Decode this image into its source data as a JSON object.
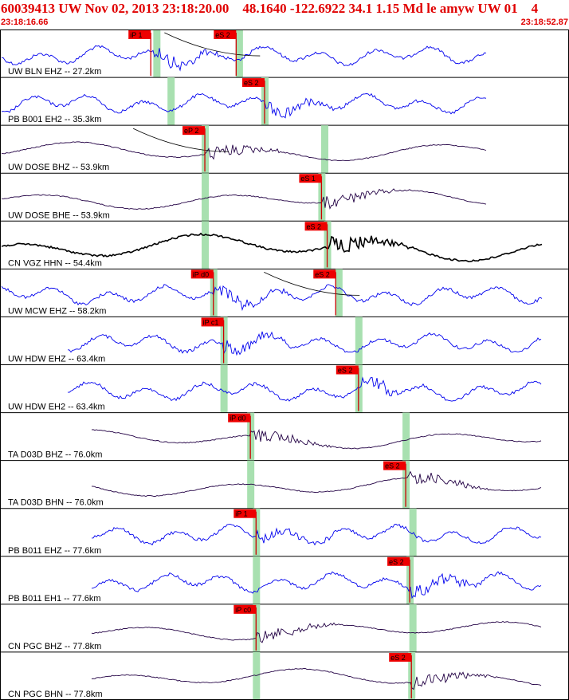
{
  "header": {
    "title": "60039413 UW Nov 02, 2013 23:18:20.00    48.1640 -122.6922 34.1 1.15 Md le amyw UW 01    4",
    "time_start": "23:18:16.66",
    "time_end": "23:18:52.87",
    "text_color": "#e00000"
  },
  "colors": {
    "blue_trace": "#0000ee",
    "dark_trace": "#220044",
    "black_trace": "#000000",
    "pick_bg": "#ee0000",
    "pick_line": "#cc0000",
    "window": "#a8e0b0"
  },
  "traces": [
    {
      "label": "UW BLN EHZ -- 27.2km",
      "color": "blue",
      "picks": [
        {
          "t": "iP 1",
          "pos": 0.265
        },
        {
          "t": "eS 2",
          "pos": 0.415
        }
      ],
      "windows": [
        0.275,
        0.42
      ],
      "curve": true
    },
    {
      "label": "PB B001 EH2 -- 35.3km",
      "color": "blue",
      "picks": [
        {
          "t": "eS 2",
          "pos": 0.465
        }
      ],
      "windows": [
        0.3,
        0.465
      ],
      "curve": false
    },
    {
      "label": "UW DOSE BHZ -- 53.9km",
      "color": "dark",
      "picks": [
        {
          "t": "eP 2",
          "pos": 0.36
        }
      ],
      "windows": [
        0.36,
        0.57
      ],
      "curve": true
    },
    {
      "label": "UW DOSE BHE -- 53.9km",
      "color": "dark",
      "picks": [
        {
          "t": "eS 1",
          "pos": 0.565
        }
      ],
      "windows": [
        0.36,
        0.565
      ],
      "curve": false
    },
    {
      "label": "CN VGZ HHN -- 54.4km",
      "color": "black",
      "picks": [
        {
          "t": "eS 2",
          "pos": 0.575
        }
      ],
      "windows": [
        0.36,
        0.575
      ],
      "curve": false
    },
    {
      "label": "UW MCW EHZ -- 58.2km",
      "color": "blue",
      "picks": [
        {
          "t": "iP d0",
          "pos": 0.375
        },
        {
          "t": "eS 2",
          "pos": 0.59
        }
      ],
      "windows": [
        0.375,
        0.595
      ],
      "curve": true
    },
    {
      "label": "UW HDW EHZ -- 63.4km",
      "color": "blue",
      "picks": [
        {
          "t": "iP c1",
          "pos": 0.393
        }
      ],
      "windows": [
        0.393,
        0.63
      ],
      "curve": false
    },
    {
      "label": "UW HDW EH2 -- 63.4km",
      "color": "blue",
      "picks": [
        {
          "t": "eS 2",
          "pos": 0.63
        }
      ],
      "windows": [
        0.393,
        0.63
      ],
      "curve": false
    },
    {
      "label": "TA D03D BHZ -- 76.0km",
      "color": "dark",
      "picks": [
        {
          "t": "iP d0",
          "pos": 0.44
        }
      ],
      "windows": [
        0.44,
        0.713
      ],
      "curve": false
    },
    {
      "label": "TA D03D BHN -- 76.0km",
      "color": "dark",
      "picks": [
        {
          "t": "eS 2",
          "pos": 0.713
        }
      ],
      "windows": [
        0.44,
        0.713
      ],
      "curve": false
    },
    {
      "label": "PB B011 EHZ -- 77.6km",
      "color": "blue",
      "picks": [
        {
          "t": "iP 1",
          "pos": 0.45
        }
      ],
      "windows": [
        0.45,
        0.725
      ],
      "curve": false
    },
    {
      "label": "PB B011 EH1 -- 77.6km",
      "color": "blue",
      "picks": [
        {
          "t": "eS 2",
          "pos": 0.72
        }
      ],
      "windows": [
        0.45,
        0.72
      ],
      "curve": false
    },
    {
      "label": "CN PGC BHZ -- 77.8km",
      "color": "dark",
      "picks": [
        {
          "t": "iP c0",
          "pos": 0.45
        }
      ],
      "windows": [
        0.45,
        0.725
      ],
      "curve": false
    },
    {
      "label": "CN PGC BHN -- 77.8km",
      "color": "dark",
      "picks": [
        {
          "t": "eS 2",
          "pos": 0.723
        }
      ],
      "windows": [
        0.45,
        0.723
      ],
      "curve": false
    }
  ]
}
